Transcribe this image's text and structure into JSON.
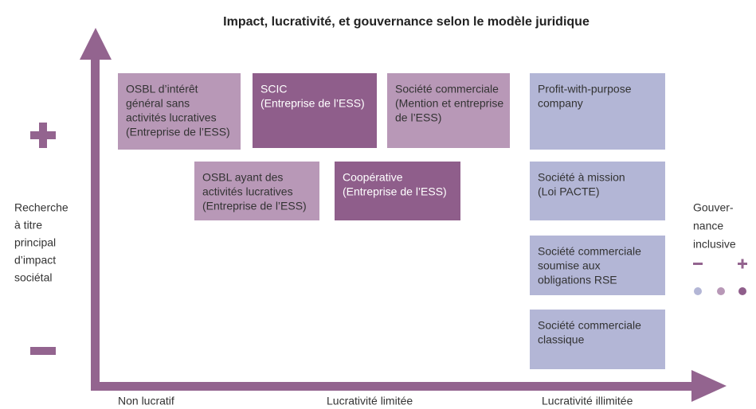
{
  "title": "Impact, lucrativité, et gouvernance selon le modèle juridique",
  "y_axis_label": [
    "Recherche",
    "à titre",
    "principal",
    "d’impact",
    "sociétal"
  ],
  "x_axis_labels": [
    "Non lucratif",
    "Lucrativité limitée",
    "Lucrativité illimitée"
  ],
  "boxes": [
    {
      "lines": [
        "OSBL d’intérêt",
        "général sans",
        "activités lucratives",
        "(Entreprise de l’ESS)"
      ]
    },
    {
      "lines": [
        "SCIC",
        "(Entreprise de l’ESS)"
      ]
    },
    {
      "lines": [
        "Société commerciale",
        "(Mention et entreprise",
        "de l’ESS)"
      ]
    },
    {
      "lines": [
        "Profit-with-purpose",
        "company"
      ]
    },
    {
      "lines": [
        "OSBL ayant des",
        "activités lucratives",
        "(Entreprise de l’ESS)"
      ]
    },
    {
      "lines": [
        "Coopérative",
        "(Entreprise de l’ESS)"
      ]
    },
    {
      "lines": [
        "Société à mission",
        "(Loi PACTE)"
      ]
    },
    {
      "lines": [
        "Société commerciale",
        "soumise aux",
        "obligations RSE"
      ]
    },
    {
      "lines": [
        "Société commerciale",
        "classique"
      ]
    }
  ],
  "legend_label": [
    "Gouver-",
    "nance",
    "inclusive"
  ]
}
